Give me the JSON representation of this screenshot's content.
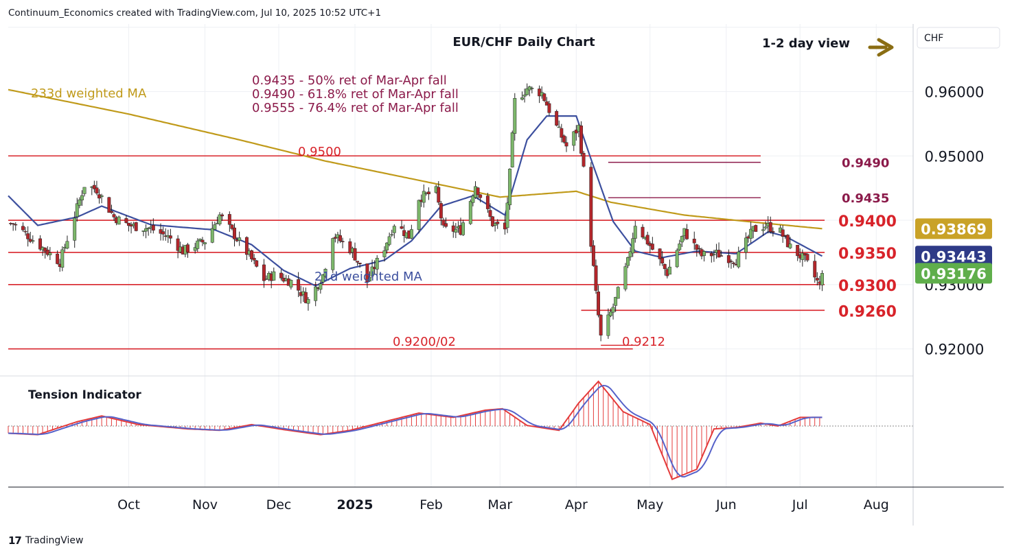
{
  "header": {
    "created_by": "Continuum_Economics created with TradingView.com, Jul 10, 2025 10:52 UTC+1",
    "chart_title": "EUR/CHF Daily Chart",
    "view_label": "1-2 day view",
    "currency_box": "CHF"
  },
  "footer": {
    "logo_glyph": "17",
    "brand": "TradingView"
  },
  "colors": {
    "up_candle": "#7cb76a",
    "down_candle": "#b3262b",
    "wick": "#222222",
    "level_line": "#d8232a",
    "retracement_line": "#8b1a4a",
    "ma233": "#c09a1a",
    "ma21": "#3c4f9e",
    "tension_fill": "#e43a3a",
    "tension_ma": "#5561c9",
    "arrow": "#8a6d13",
    "price_tag_ma233": "#c9a227",
    "price_tag_ma21": "#2e3a87",
    "price_tag_last": "#5fae4b"
  },
  "chart_data": {
    "type": "candlestick",
    "title": "EUR/CHF Daily Chart",
    "yaxis_ticks": [
      "0.92000",
      "0.93000",
      "0.95000",
      "0.96000"
    ],
    "yaxis_range": [
      0.9158,
      0.9705
    ],
    "xaxis_labels": [
      "Oct",
      "Nov",
      "Dec",
      "2025",
      "Feb",
      "Mar",
      "Apr",
      "May",
      "Jun",
      "Jul",
      "Aug"
    ],
    "price_tags": [
      {
        "label": "0.93869",
        "series": "233d weighted MA"
      },
      {
        "label": "0.93443",
        "series": "21d weighted MA"
      },
      {
        "label": "0.93176",
        "series": "last price"
      }
    ],
    "horizontal_levels": [
      {
        "value": 0.95,
        "label": "0.9500",
        "from": "2024-08-13",
        "to": "2025-06-15"
      },
      {
        "value": 0.94,
        "label": "0.9400",
        "from": "2024-08-13",
        "to": "2025-07-11"
      },
      {
        "value": 0.935,
        "label": "0.9350",
        "from": "2024-08-13",
        "to": "2025-07-11"
      },
      {
        "value": 0.93,
        "label": "0.9300",
        "from": "2024-08-13",
        "to": "2025-07-11"
      },
      {
        "value": 0.926,
        "label": "0.9260",
        "from": "2025-04-03",
        "to": "2025-07-11"
      },
      {
        "value": 0.92,
        "label": "0.9200/02",
        "from": "2024-08-13",
        "to": "2025-04-24"
      }
    ],
    "retracement_levels": [
      {
        "value": 0.949,
        "label": "0.9490",
        "from": "2025-04-14",
        "to": "2025-06-15"
      },
      {
        "value": 0.9435,
        "label": "0.9435",
        "from": "2025-04-14",
        "to": "2025-06-15"
      }
    ],
    "low_marker": {
      "value": 0.9212,
      "label": "0.9212",
      "from": "2025-04-11",
      "to": "2025-04-25"
    },
    "annotations": [
      "0.9435 - 50% ret of Mar-Apr fall",
      "0.9490 - 61.8% ret of Mar-Apr fall",
      "0.9555 - 76.4% ret of Mar-Apr fall"
    ],
    "series_labels": {
      "ma233": "233d weighted MA",
      "ma21": "21d weighted MA"
    },
    "anchors": [
      [
        "2024-08-15",
        0.9395
      ],
      [
        "2024-09-03",
        0.9335
      ],
      [
        "2024-09-13",
        0.9455
      ],
      [
        "2024-09-18",
        0.9448
      ],
      [
        "2024-09-25",
        0.9405
      ],
      [
        "2024-10-01",
        0.9392
      ],
      [
        "2024-10-10",
        0.9387
      ],
      [
        "2024-10-18",
        0.9372
      ],
      [
        "2024-10-23",
        0.9352
      ],
      [
        "2024-11-01",
        0.9368
      ],
      [
        "2024-11-07",
        0.9408
      ],
      [
        "2024-11-12",
        0.9382
      ],
      [
        "2024-11-19",
        0.9345
      ],
      [
        "2024-11-25",
        0.9308
      ],
      [
        "2024-11-29",
        0.9315
      ],
      [
        "2024-12-06",
        0.9305
      ],
      [
        "2024-12-13",
        0.9275
      ],
      [
        "2024-12-19",
        0.9315
      ],
      [
        "2024-12-23",
        0.9378
      ],
      [
        "2024-12-31",
        0.9352
      ],
      [
        "2025-01-06",
        0.9305
      ],
      [
        "2025-01-13",
        0.9358
      ],
      [
        "2025-01-17",
        0.9395
      ],
      [
        "2025-01-23",
        0.9375
      ],
      [
        "2025-01-27",
        0.9435
      ],
      [
        "2025-02-03",
        0.9445
      ],
      [
        "2025-02-06",
        0.9385
      ],
      [
        "2025-02-13",
        0.9385
      ],
      [
        "2025-02-19",
        0.9455
      ],
      [
        "2025-02-26",
        0.9395
      ],
      [
        "2025-03-03",
        0.9385
      ],
      [
        "2025-03-05",
        0.9472
      ],
      [
        "2025-03-07",
        0.9585
      ],
      [
        "2025-03-12",
        0.9605
      ],
      [
        "2025-03-18",
        0.9598
      ],
      [
        "2025-03-24",
        0.9545
      ],
      [
        "2025-03-28",
        0.9515
      ],
      [
        "2025-04-02",
        0.9545
      ],
      [
        "2025-04-04",
        0.9478
      ],
      [
        "2025-04-07",
        0.9365
      ],
      [
        "2025-04-09",
        0.9285
      ],
      [
        "2025-04-11",
        0.9218
      ],
      [
        "2025-04-16",
        0.9265
      ],
      [
        "2025-04-22",
        0.9335
      ],
      [
        "2025-04-25",
        0.9395
      ],
      [
        "2025-05-02",
        0.9355
      ],
      [
        "2025-05-08",
        0.9318
      ],
      [
        "2025-05-15",
        0.9382
      ],
      [
        "2025-05-22",
        0.9345
      ],
      [
        "2025-05-28",
        0.9348
      ],
      [
        "2025-06-05",
        0.9338
      ],
      [
        "2025-06-12",
        0.9385
      ],
      [
        "2025-06-17",
        0.9392
      ],
      [
        "2025-06-23",
        0.9382
      ],
      [
        "2025-06-27",
        0.9358
      ],
      [
        "2025-07-03",
        0.9338
      ],
      [
        "2025-07-09",
        0.9298
      ],
      [
        "2025-07-10",
        0.93176
      ]
    ],
    "ma233_anchors": [
      [
        "2024-08-13",
        0.9603
      ],
      [
        "2024-10-01",
        0.9565
      ],
      [
        "2024-11-15",
        0.9525
      ],
      [
        "2024-12-20",
        0.9492
      ],
      [
        "2025-02-05",
        0.9455
      ],
      [
        "2025-03-01",
        0.9436
      ],
      [
        "2025-04-01",
        0.9445
      ],
      [
        "2025-04-15",
        0.9428
      ],
      [
        "2025-05-15",
        0.9408
      ],
      [
        "2025-06-15",
        0.9396
      ],
      [
        "2025-07-10",
        0.93869
      ]
    ],
    "ma21_anchors": [
      [
        "2024-08-13",
        0.9438
      ],
      [
        "2024-08-25",
        0.9392
      ],
      [
        "2024-09-10",
        0.9405
      ],
      [
        "2024-09-20",
        0.9422
      ],
      [
        "2024-10-10",
        0.9393
      ],
      [
        "2024-11-05",
        0.9385
      ],
      [
        "2024-11-20",
        0.9362
      ],
      [
        "2024-12-03",
        0.9322
      ],
      [
        "2024-12-16",
        0.9298
      ],
      [
        "2024-12-30",
        0.9325
      ],
      [
        "2025-01-13",
        0.9338
      ],
      [
        "2025-01-24",
        0.9368
      ],
      [
        "2025-02-05",
        0.9422
      ],
      [
        "2025-02-18",
        0.9438
      ],
      [
        "2025-03-03",
        0.9408
      ],
      [
        "2025-03-12",
        0.9525
      ],
      [
        "2025-03-20",
        0.9562
      ],
      [
        "2025-04-01",
        0.9562
      ],
      [
        "2025-04-07",
        0.9495
      ],
      [
        "2025-04-16",
        0.9398
      ],
      [
        "2025-04-25",
        0.9352
      ],
      [
        "2025-05-06",
        0.9342
      ],
      [
        "2025-05-20",
        0.9352
      ],
      [
        "2025-06-05",
        0.9348
      ],
      [
        "2025-06-18",
        0.9382
      ],
      [
        "2025-06-25",
        0.9375
      ],
      [
        "2025-07-10",
        0.93443
      ]
    ],
    "tension_indicator": {
      "label": "Tension Indicator",
      "zero_line": 0,
      "anchors": [
        [
          "2024-08-13",
          -0.25
        ],
        [
          "2024-08-25",
          -0.3
        ],
        [
          "2024-09-10",
          0.15
        ],
        [
          "2024-09-20",
          0.35
        ],
        [
          "2024-10-05",
          0.05
        ],
        [
          "2024-10-25",
          -0.1
        ],
        [
          "2024-11-07",
          -0.15
        ],
        [
          "2024-11-20",
          0.05
        ],
        [
          "2024-12-05",
          -0.15
        ],
        [
          "2024-12-18",
          -0.3
        ],
        [
          "2024-12-30",
          -0.15
        ],
        [
          "2025-01-13",
          0.15
        ],
        [
          "2025-01-27",
          0.45
        ],
        [
          "2025-02-10",
          0.3
        ],
        [
          "2025-02-23",
          0.55
        ],
        [
          "2025-03-02",
          0.6
        ],
        [
          "2025-03-12",
          0.02
        ],
        [
          "2025-03-25",
          -0.15
        ],
        [
          "2025-04-02",
          0.8
        ],
        [
          "2025-04-10",
          1.55
        ],
        [
          "2025-04-20",
          0.5
        ],
        [
          "2025-05-01",
          0.05
        ],
        [
          "2025-05-10",
          -1.85
        ],
        [
          "2025-05-20",
          -1.5
        ],
        [
          "2025-05-27",
          -0.1
        ],
        [
          "2025-06-05",
          -0.05
        ],
        [
          "2025-06-15",
          0.1
        ],
        [
          "2025-06-22",
          0.0
        ],
        [
          "2025-07-01",
          0.3
        ],
        [
          "2025-07-10",
          0.3
        ]
      ]
    }
  }
}
